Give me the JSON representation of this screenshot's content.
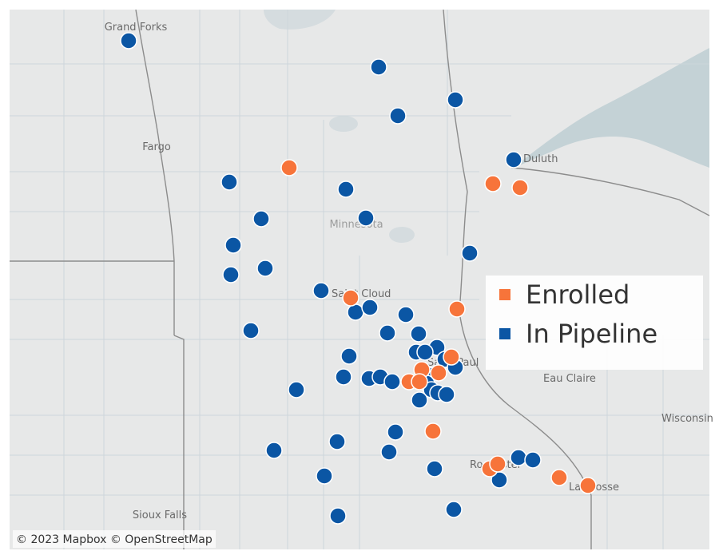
{
  "map": {
    "places": [
      "Grand Forks",
      "Fargo",
      "Duluth",
      "Minnesota",
      "Saint Cloud",
      "Saint Paul",
      "Eau Claire",
      "Wisconsin",
      "Rochester",
      "La Crosse",
      "Sioux Falls"
    ],
    "legend": [
      {
        "name": "Enrolled",
        "color": "#f7743a"
      },
      {
        "name": "In Pipeline",
        "color": "#0b56a4"
      }
    ],
    "attribution": "© 2023 Mapbox © OpenStreetMap"
  }
}
